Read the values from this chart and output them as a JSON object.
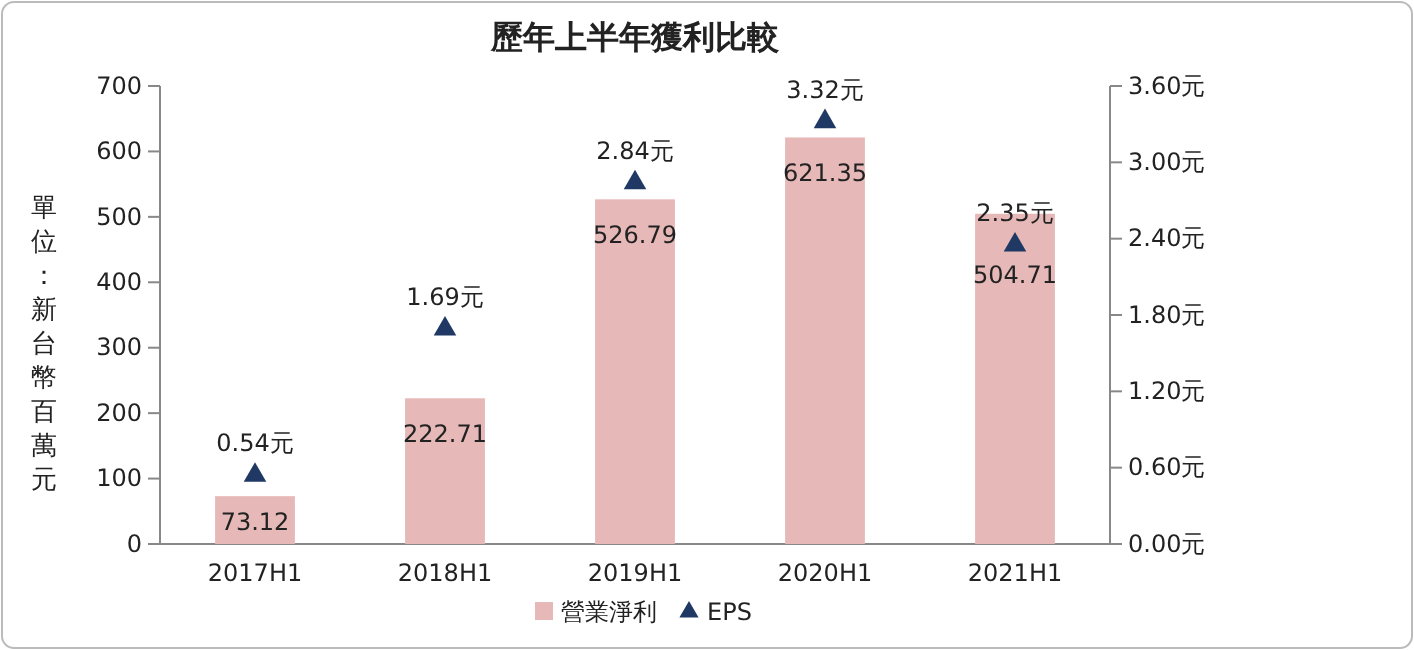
{
  "chart_data": {
    "type": "bar",
    "title": "歷年上半年獲利比較",
    "ylabel": "單位：新台幣百萬元",
    "categories": [
      "2017H1",
      "2018H1",
      "2019H1",
      "2020H1",
      "2021H1"
    ],
    "series": [
      {
        "name": "營業淨利",
        "color": "#e6b8b7",
        "values": [
          73.12,
          222.71,
          526.79,
          621.35,
          504.71
        ],
        "value_labels": [
          "73.12",
          "222.71",
          "526.79",
          "621.35",
          "504.71"
        ]
      },
      {
        "name": "EPS",
        "type": "scatter",
        "axis": "y2",
        "color": "#1f3864",
        "marker": "triangle",
        "values": [
          0.54,
          1.69,
          2.84,
          3.32,
          2.35
        ],
        "value_labels": [
          "0.54元",
          "1.69元",
          "2.84元",
          "3.32元",
          "2.35元"
        ]
      }
    ],
    "ylim": [
      0,
      700
    ],
    "yticks": [
      0,
      100,
      200,
      300,
      400,
      500,
      600,
      700
    ],
    "y2lim": [
      0,
      3.6
    ],
    "y2ticks": [
      {
        "value": 0,
        "label": "0.00元"
      },
      {
        "value": 0.6,
        "label": "0.60元"
      },
      {
        "value": 1.2,
        "label": "1.20元"
      },
      {
        "value": 1.8,
        "label": "1.80元"
      },
      {
        "value": 2.4,
        "label": "2.40元"
      },
      {
        "value": 3.0,
        "label": "3.00元"
      },
      {
        "value": 3.6,
        "label": "3.60元"
      }
    ],
    "grid": false,
    "legend": "bottom"
  }
}
